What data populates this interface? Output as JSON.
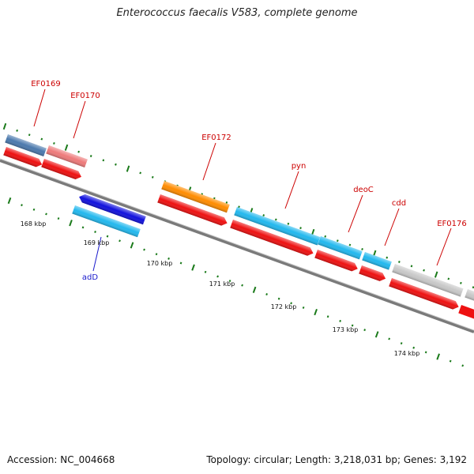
{
  "title": "Enterococcus faecalis V583, complete genome",
  "footer": {
    "accession": "Accession: NC_004668",
    "topology": "Topology: circular; Length: 3,218,031 bp; Genes: 3,192"
  },
  "colors": {
    "backbone": "#8a8a8a",
    "tick": "#1a7a1a",
    "label_red": "#cc0000",
    "label_blue": "#1a1acc",
    "cds": "#ee1111"
  },
  "scale_labels": [
    "168 kbp",
    "169 kbp",
    "170 kbp",
    "171 kbp",
    "172 kbp",
    "173 kbp",
    "174 kbp"
  ],
  "gene_labels": [
    {
      "text": "EF0169",
      "color": "#cc0000"
    },
    {
      "text": "EF0170",
      "color": "#cc0000"
    },
    {
      "text": "EF0172",
      "color": "#cc0000"
    },
    {
      "text": "pyn",
      "color": "#cc0000"
    },
    {
      "text": "deoC",
      "color": "#cc0000"
    },
    {
      "text": "cdd",
      "color": "#cc0000"
    },
    {
      "text": "EF0176",
      "color": "#cc0000"
    },
    {
      "text": "adD",
      "color": "#1a1acc"
    }
  ]
}
